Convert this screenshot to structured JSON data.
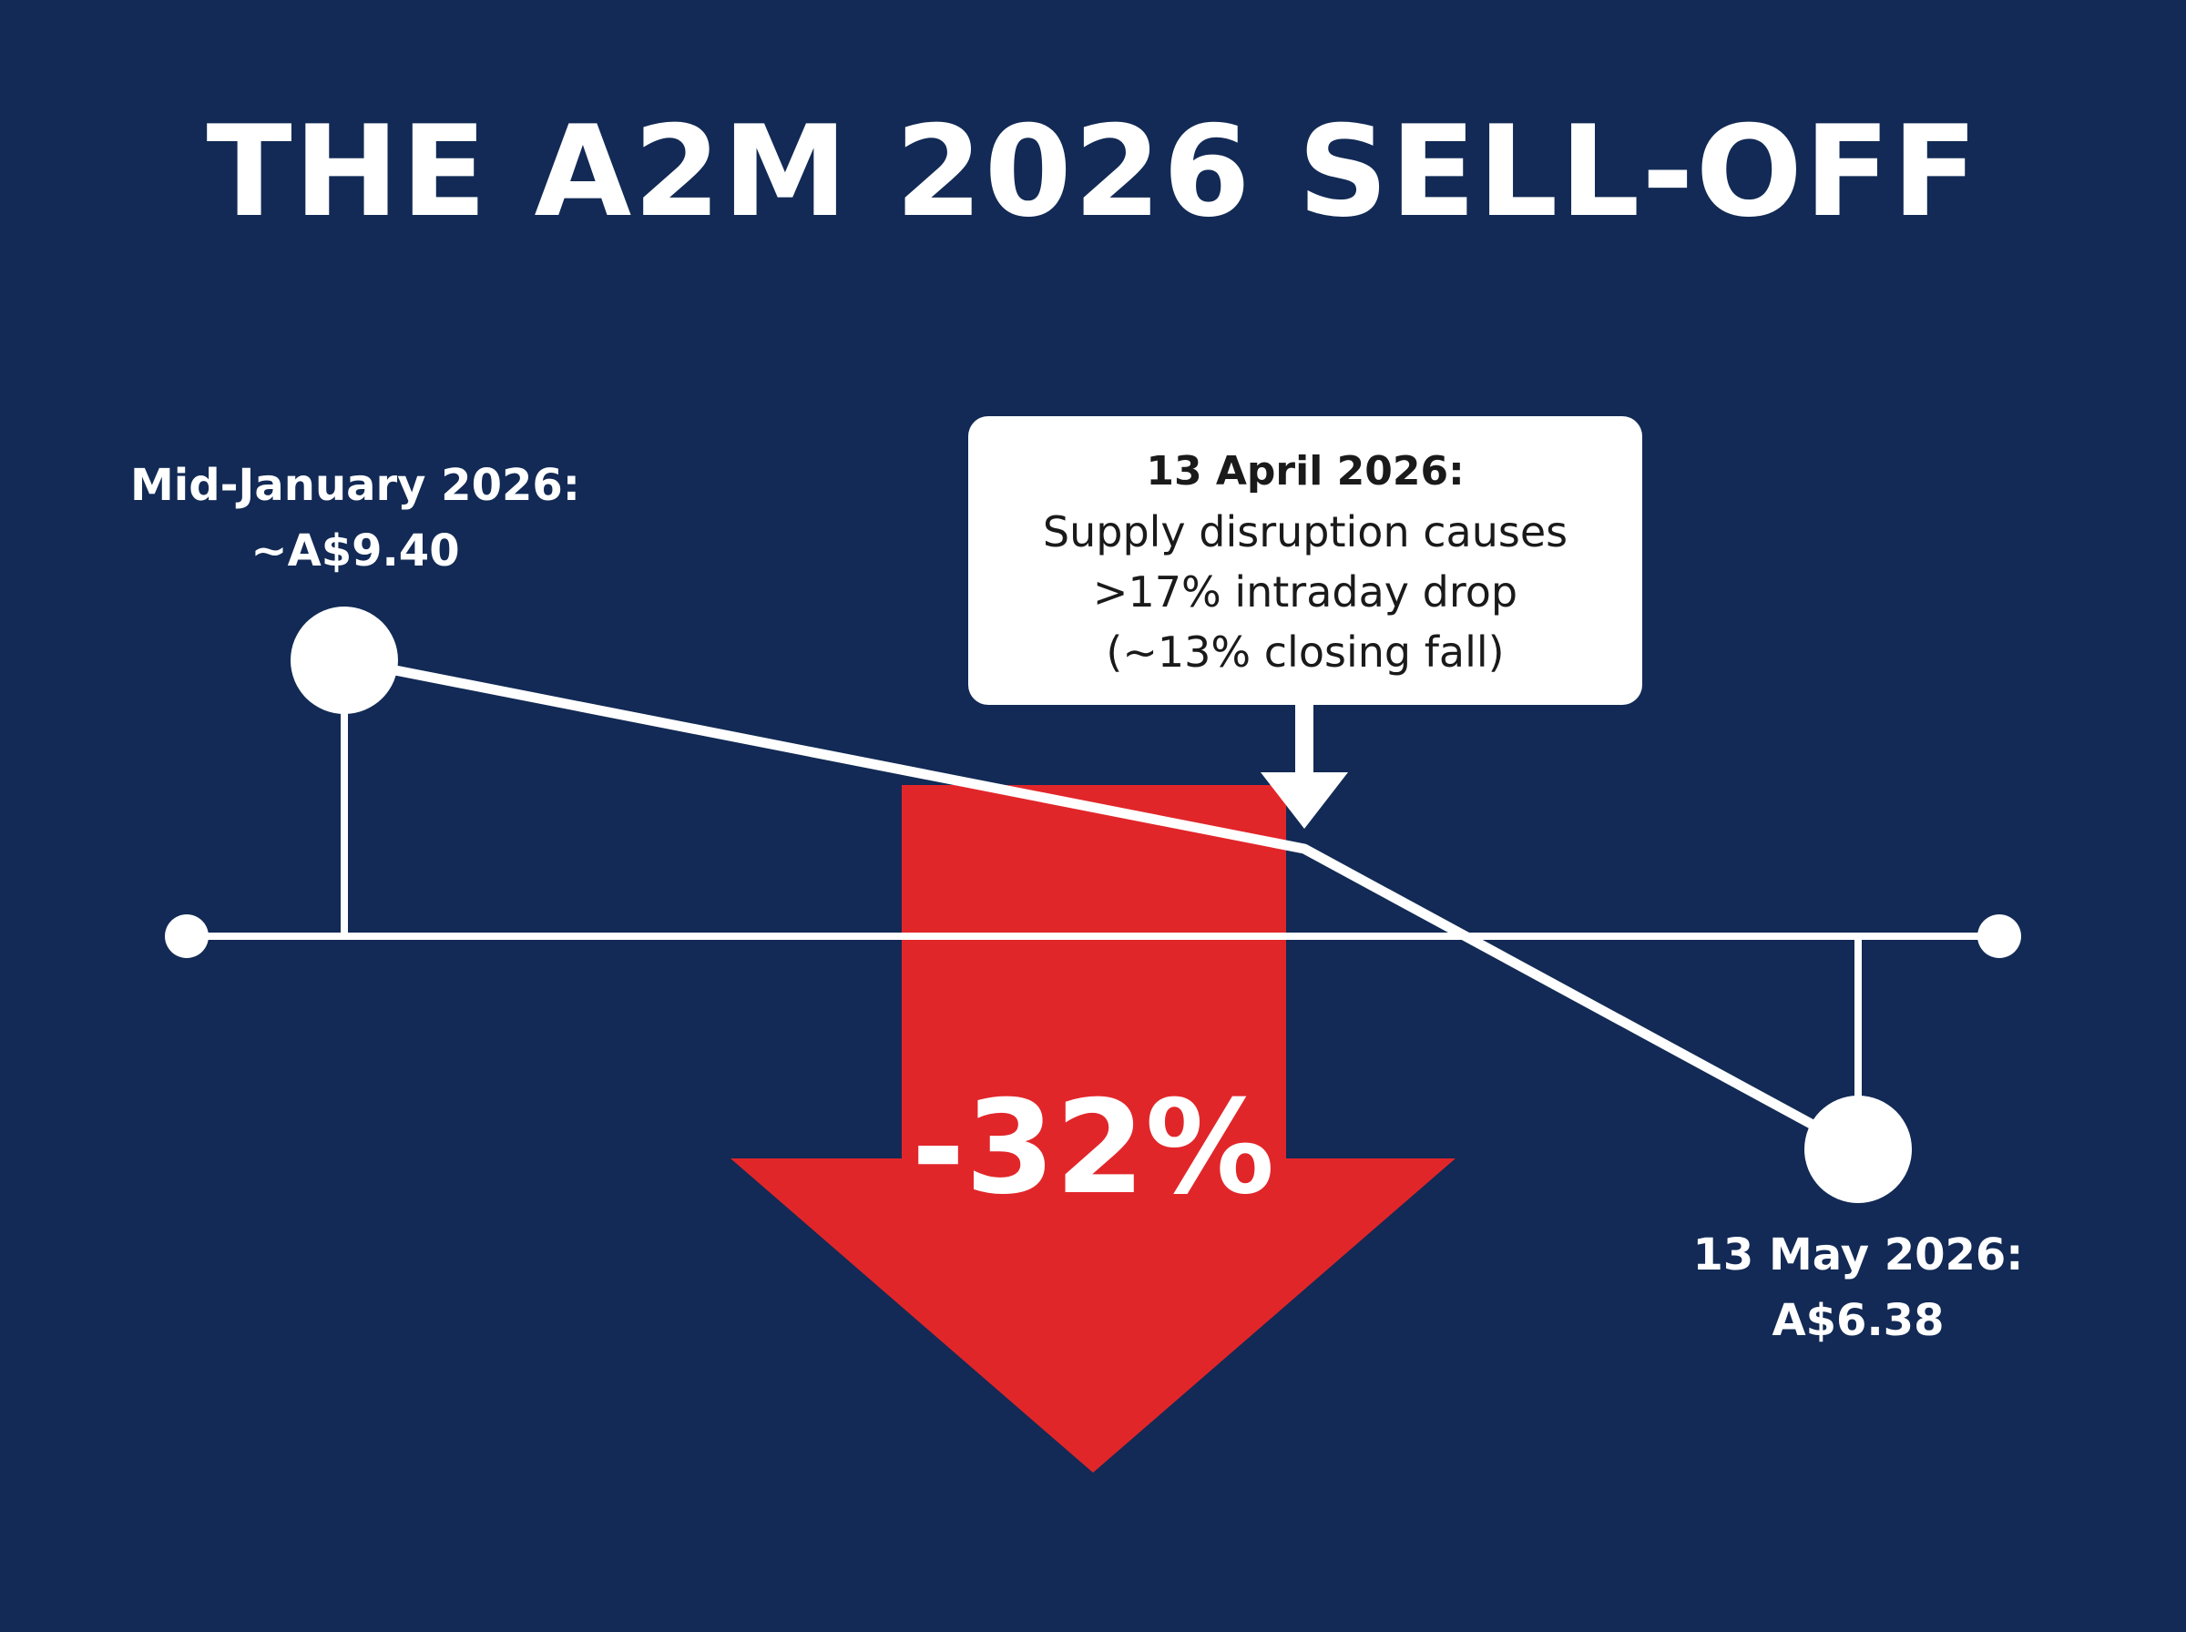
{
  "title": "THE A2M 2026 SELL-OFF",
  "colors": {
    "background": "#122a55",
    "line": "#ffffff",
    "drop_arrow": "#e1262a",
    "callout_bg": "#ffffff",
    "callout_text": "#1a1a1a"
  },
  "chart_data": {
    "type": "line",
    "title": "THE A2M 2026 SELL-OFF",
    "xlabel": "",
    "ylabel": "",
    "grid": false,
    "legend": "none",
    "series": [
      {
        "x": [
          "Mid-January 2026",
          "13 April 2026",
          "13 May 2026"
        ],
        "values": [
          9.4,
          null,
          6.38
        ]
      }
    ],
    "points": {
      "start": {
        "date_label": "Mid-January 2026:",
        "value_label": "~A$9.40",
        "value": 9.4
      },
      "end": {
        "date_label": "13 May 2026:",
        "value_label": "A$6.38",
        "value": 6.38
      }
    },
    "annotation": {
      "date_label": "13 April 2026:",
      "lines": [
        "Supply disruption causes",
        ">17% intraday drop",
        "(~13% closing fall)"
      ],
      "intraday_drop_pct": 17,
      "closing_fall_pct": 13
    },
    "change_label": "-32%",
    "change_pct": -32
  }
}
